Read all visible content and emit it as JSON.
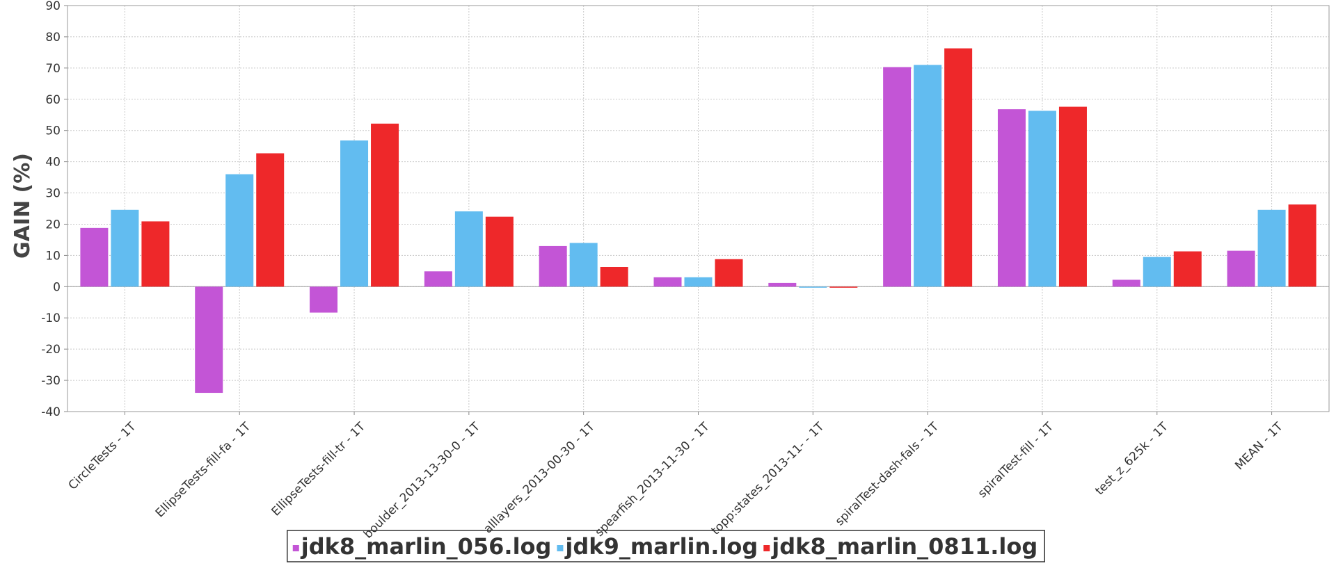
{
  "chart_data": {
    "type": "bar",
    "title": "",
    "xlabel": "",
    "ylabel": "GAIN (%)",
    "ylim": [
      -40,
      90
    ],
    "yticks": [
      -40,
      -30,
      -20,
      -10,
      0,
      10,
      20,
      30,
      40,
      50,
      60,
      70,
      80,
      90
    ],
    "grid": true,
    "legend_position": "bottom",
    "categories": [
      "CircleTests - 1T",
      "EllipseTests-fill-fa - 1T",
      "EllipseTests-fill-tr - 1T",
      "boulder_2013-13-30-0 - 1T",
      "alllayers_2013-00-30 - 1T",
      "spearfish_2013-11-30 - 1T",
      "topp:states_2013-11- - 1T",
      "spiralTest-dash-fals - 1T",
      "spiralTest-fill - 1T",
      "test_z_625k - 1T",
      "MEAN - 1T"
    ],
    "series": [
      {
        "name": "jdk8_marlin_056.log",
        "color": "#c355d6",
        "values": [
          18.8,
          -34,
          -8.3,
          4.9,
          13,
          3,
          1.2,
          70.3,
          56.8,
          2.2,
          11.5
        ]
      },
      {
        "name": "jdk9_marlin.log",
        "color": "#62bcf0",
        "values": [
          24.6,
          36,
          46.8,
          24.1,
          14,
          3,
          0,
          71,
          56.3,
          9.5,
          24.6
        ]
      },
      {
        "name": "jdk8_marlin_0811.log",
        "color": "#ee282a",
        "values": [
          20.9,
          42.7,
          52.2,
          22.4,
          6.3,
          8.8,
          -0.3,
          76.3,
          57.6,
          11.3,
          26.3
        ]
      }
    ]
  }
}
